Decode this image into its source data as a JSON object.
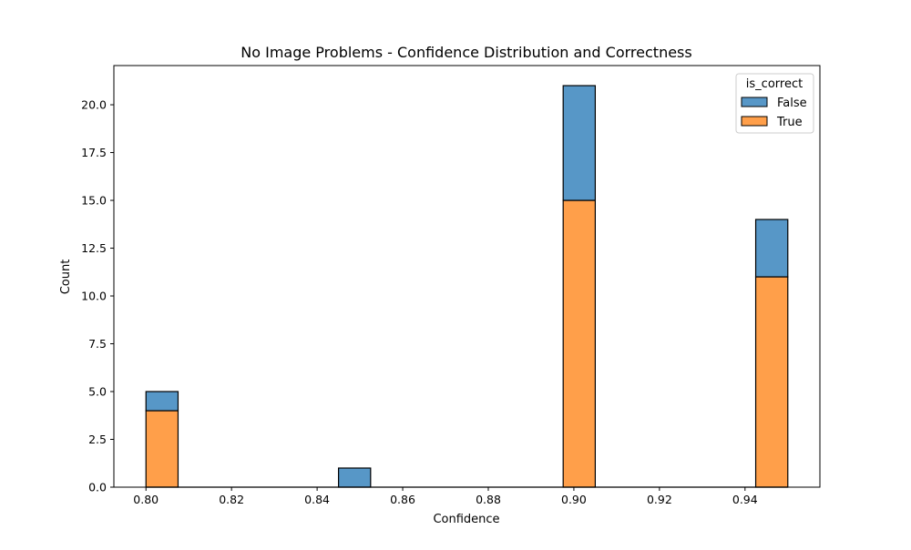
{
  "chart_data": {
    "type": "bar",
    "title": "No Image Problems - Confidence Distribution and Correctness",
    "xlabel": "Confidence",
    "ylabel": "Count",
    "xlim": [
      0.7925,
      0.9575
    ],
    "ylim": [
      0,
      22.05
    ],
    "xticks": [
      "0.80",
      "0.82",
      "0.84",
      "0.86",
      "0.88",
      "0.90",
      "0.92",
      "0.94"
    ],
    "xtick_values": [
      0.8,
      0.82,
      0.84,
      0.86,
      0.88,
      0.9,
      0.92,
      0.94
    ],
    "yticks": [
      "0.0",
      "2.5",
      "5.0",
      "7.5",
      "10.0",
      "12.5",
      "15.0",
      "17.5",
      "20.0"
    ],
    "ytick_values": [
      0,
      2.5,
      5,
      7.5,
      10,
      12.5,
      15,
      17.5,
      20
    ],
    "bins": [
      {
        "x0": 0.8,
        "x1": 0.8075,
        "true": 4,
        "false": 1
      },
      {
        "x0": 0.845,
        "x1": 0.8525,
        "true": 0,
        "false": 1
      },
      {
        "x0": 0.8975,
        "x1": 0.905,
        "true": 15,
        "false": 6
      },
      {
        "x0": 0.9425,
        "x1": 0.95,
        "true": 11,
        "false": 3
      }
    ],
    "stacked": true,
    "grid": false,
    "legend": {
      "title": "is_correct",
      "position": "top-right",
      "entries": [
        {
          "label": "False",
          "color": "#5797c7"
        },
        {
          "label": "True",
          "color": "#ff9f4a"
        }
      ]
    },
    "colors": {
      "false": "#5797c7",
      "true": "#ff9f4a"
    }
  }
}
